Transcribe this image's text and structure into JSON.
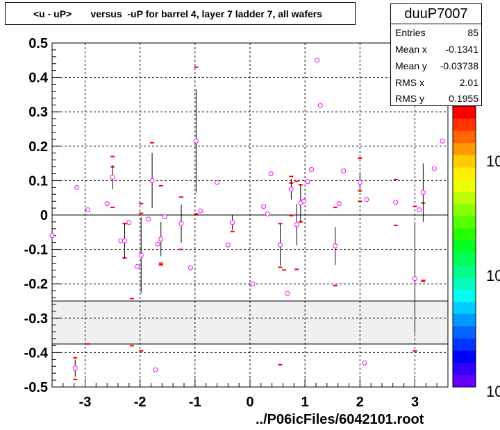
{
  "title": "<u - uP>       versus  -uP for barrel 4, layer 7 ladder 7, all wafers",
  "stats": {
    "name": "duuP7007",
    "rows": [
      {
        "label": "Entries",
        "value": "85"
      },
      {
        "label": "Mean x",
        "value": "-0.1341"
      },
      {
        "label": "Mean y",
        "value": "-0.03738"
      },
      {
        "label": "RMS x",
        "value": "2.01"
      },
      {
        "label": "RMS y",
        "value": "0.1955"
      }
    ]
  },
  "footer": "../P06icFiles/6042101.root",
  "colorbar": {
    "labels": [
      "10",
      "10",
      "10"
    ]
  },
  "chart_data": {
    "type": "scatter",
    "title": "<u - uP>       versus  -uP for barrel 4, layer 7 ladder 7, all wafers",
    "xlabel": "",
    "ylabel": "",
    "xlim": [
      -3.6,
      3.6
    ],
    "ylim": [
      -0.5,
      0.5
    ],
    "xticks": [
      "-3",
      "-2",
      "-1",
      "0",
      "1",
      "2",
      "3"
    ],
    "yticks": [
      "-0.5",
      "-0.4",
      "-0.3",
      "-0.2",
      "-0.1",
      "0",
      "0.1",
      "0.2",
      "0.3",
      "0.4",
      "0.5"
    ],
    "grid": true,
    "band": {
      "ymin": -0.375,
      "ymax": -0.25,
      "color": "#f0f0f0"
    },
    "marker_color": "#ff00ff",
    "red_color": "#ff0000",
    "profile_points": [
      {
        "x": -3.6,
        "y": -0.06,
        "err": 0.0
      },
      {
        "x": -3.15,
        "y": 0.08,
        "err": 0.0
      },
      {
        "x": -2.95,
        "y": 0.015,
        "err": 0.0
      },
      {
        "x": -2.6,
        "y": 0.033,
        "err": 0.0
      },
      {
        "x": -2.5,
        "y": 0.11,
        "err": 0.035
      },
      {
        "x": -2.35,
        "y": -0.075,
        "err": 0.0
      },
      {
        "x": -2.28,
        "y": -0.075,
        "err": 0.05
      },
      {
        "x": -2.2,
        "y": -0.022,
        "err": 0.0
      },
      {
        "x": -2.05,
        "y": -0.15,
        "err": 0.0
      },
      {
        "x": -1.98,
        "y": -0.117,
        "err": 0.11
      },
      {
        "x": -1.85,
        "y": -0.012,
        "err": 0.0
      },
      {
        "x": -1.78,
        "y": 0.1,
        "err": 0.08
      },
      {
        "x": -1.68,
        "y": -0.085,
        "err": 0.0
      },
      {
        "x": -1.62,
        "y": -0.07,
        "err": 0.05
      },
      {
        "x": -1.55,
        "y": -0.005,
        "err": 0.0
      },
      {
        "x": -1.25,
        "y": -0.025,
        "err": 0.055
      },
      {
        "x": -1.08,
        "y": -0.153,
        "err": 0.0
      },
      {
        "x": -0.98,
        "y": 0.215,
        "err": 0.15
      },
      {
        "x": -0.9,
        "y": 0.012,
        "err": 0.0
      },
      {
        "x": -0.6,
        "y": 0.095,
        "err": 0.0
      },
      {
        "x": -0.4,
        "y": -0.087,
        "err": 0.0
      },
      {
        "x": -0.32,
        "y": -0.022,
        "err": 0.022
      },
      {
        "x": 0.05,
        "y": -0.2,
        "err": 0.0
      },
      {
        "x": 0.25,
        "y": 0.025,
        "err": 0.0
      },
      {
        "x": 0.32,
        "y": 0.003,
        "err": 0.0
      },
      {
        "x": 0.38,
        "y": 0.12,
        "err": 0.0
      },
      {
        "x": 0.55,
        "y": -0.087,
        "err": 0.06
      },
      {
        "x": 0.68,
        "y": -0.228,
        "err": 0.0
      },
      {
        "x": 0.75,
        "y": 0.075,
        "err": 0.03
      },
      {
        "x": 0.85,
        "y": -0.028,
        "err": 0.06
      },
      {
        "x": 0.92,
        "y": 0.035,
        "err": 0.055
      },
      {
        "x": 0.98,
        "y": 0.04,
        "err": 0.0
      },
      {
        "x": 1.05,
        "y": 0.097,
        "err": 0.0
      },
      {
        "x": 1.12,
        "y": 0.132,
        "err": 0.0
      },
      {
        "x": 1.22,
        "y": 0.45,
        "err": 0.0
      },
      {
        "x": 1.28,
        "y": 0.318,
        "err": 0.0
      },
      {
        "x": 1.55,
        "y": -0.09,
        "err": 0.055
      },
      {
        "x": 1.62,
        "y": 0.033,
        "err": 0.0
      },
      {
        "x": 1.7,
        "y": 0.128,
        "err": 0.0
      },
      {
        "x": 2.0,
        "y": 0.095,
        "err": 0.025
      },
      {
        "x": 2.12,
        "y": 0.045,
        "err": 0.0
      },
      {
        "x": 2.08,
        "y": -0.43,
        "err": 0.0
      },
      {
        "x": 2.65,
        "y": 0.037,
        "err": 0.0
      },
      {
        "x": 3.0,
        "y": -0.185,
        "err": 0.16
      },
      {
        "x": 3.08,
        "y": 0.015,
        "err": 0.0
      },
      {
        "x": 3.15,
        "y": 0.065,
        "err": 0.085
      },
      {
        "x": 3.35,
        "y": 0.135,
        "err": 0.0
      },
      {
        "x": 3.5,
        "y": 0.215,
        "err": 0.0
      },
      {
        "x": -3.18,
        "y": -0.445,
        "err": 0.025
      },
      {
        "x": -1.72,
        "y": -0.45,
        "err": 0.0
      }
    ],
    "red_marks": [
      {
        "x": -2.5,
        "y": 0.17
      },
      {
        "x": -2.5,
        "y": 0.14
      },
      {
        "x": -2.5,
        "y": 0.022
      },
      {
        "x": -2.28,
        "y": -0.025
      },
      {
        "x": -2.28,
        "y": -0.125
      },
      {
        "x": -2.15,
        "y": -0.243
      },
      {
        "x": -2.15,
        "y": -0.38
      },
      {
        "x": -1.98,
        "y": 0.033
      },
      {
        "x": -1.98,
        "y": 0.005
      },
      {
        "x": -1.98,
        "y": -0.395
      },
      {
        "x": -1.78,
        "y": 0.21
      },
      {
        "x": -1.62,
        "y": 0.085
      },
      {
        "x": -1.62,
        "y": -0.14
      },
      {
        "x": -1.62,
        "y": -0.145
      },
      {
        "x": -1.25,
        "y": 0.052
      },
      {
        "x": -1.25,
        "y": -0.1
      },
      {
        "x": -0.98,
        "y": 0.43
      },
      {
        "x": -0.98,
        "y": 0.003
      },
      {
        "x": -0.32,
        "y": -0.048
      },
      {
        "x": 0.55,
        "y": -0.025
      },
      {
        "x": 0.55,
        "y": -0.152
      },
      {
        "x": 0.55,
        "y": -0.435
      },
      {
        "x": 0.62,
        "y": -0.16
      },
      {
        "x": 0.75,
        "y": 0.112
      },
      {
        "x": 0.75,
        "y": 0.093
      },
      {
        "x": 0.75,
        "y": -0.002
      },
      {
        "x": 0.85,
        "y": 0.098
      },
      {
        "x": 0.85,
        "y": -0.158
      },
      {
        "x": 0.92,
        "y": 0.088
      },
      {
        "x": 0.92,
        "y": -0.02
      },
      {
        "x": 1.55,
        "y": 0.022
      },
      {
        "x": 1.55,
        "y": -0.205
      },
      {
        "x": 2.0,
        "y": 0.165
      },
      {
        "x": 2.0,
        "y": 0.07
      },
      {
        "x": 2.0,
        "y": 0.04
      },
      {
        "x": 2.65,
        "y": 0.103
      },
      {
        "x": 2.65,
        "y": -0.03
      },
      {
        "x": 3.0,
        "y": -0.395
      },
      {
        "x": 3.0,
        "y": 0.025
      },
      {
        "x": 3.15,
        "y": 0.035
      },
      {
        "x": 3.15,
        "y": -0.19
      },
      {
        "x": 3.15,
        "y": -0.193
      },
      {
        "x": -3.18,
        "y": -0.415
      },
      {
        "x": -3.18,
        "y": -0.478
      },
      {
        "x": -2.95,
        "y": -0.375
      }
    ],
    "colorbar_colors": [
      "#6600ff",
      "#3300ff",
      "#0000ff",
      "#0033ff",
      "#0066ff",
      "#0099ff",
      "#00ccff",
      "#00ffee",
      "#00ffbb",
      "#00ff88",
      "#00ff55",
      "#00ff22",
      "#22ff00",
      "#55ff00",
      "#88ff00",
      "#bbff00",
      "#eeff00",
      "#ffee00",
      "#ffcc00",
      "#ff9900",
      "#ff6600",
      "#ff3300",
      "#ff0000"
    ]
  }
}
